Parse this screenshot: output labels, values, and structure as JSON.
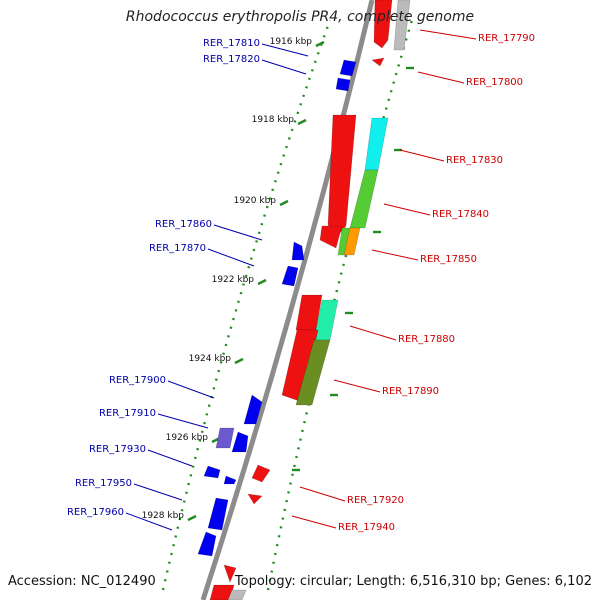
{
  "title": "Rhodococcus erythropolis PR4, complete genome",
  "footer": {
    "accession": "Accession: NC_012490",
    "topology": "Topology: circular; Length: 6,516,310 bp; Genes: 6,102"
  },
  "colors": {
    "backbone": "#8c8c8c",
    "tick": "#228b22",
    "plus_strand": "#0000ee",
    "minus_strand": "#ee0000",
    "plus_label": "#0000aa",
    "minus_label": "#cc0000",
    "scale_label": "#111111"
  },
  "scale_labels": [
    "1916 kbp",
    "1918 kbp",
    "1920 kbp",
    "1922 kbp",
    "1924 kbp",
    "1926 kbp",
    "1928 kbp"
  ],
  "plus_strand_genes": [
    "RER_17810",
    "RER_17820",
    "RER_17860",
    "RER_17870",
    "RER_17900",
    "RER_17910",
    "RER_17930",
    "RER_17950",
    "RER_17960"
  ],
  "minus_strand_genes": [
    "RER_17790",
    "RER_17800",
    "RER_17830",
    "RER_17840",
    "RER_17850",
    "RER_17880",
    "RER_17890",
    "RER_17920",
    "RER_17940"
  ]
}
